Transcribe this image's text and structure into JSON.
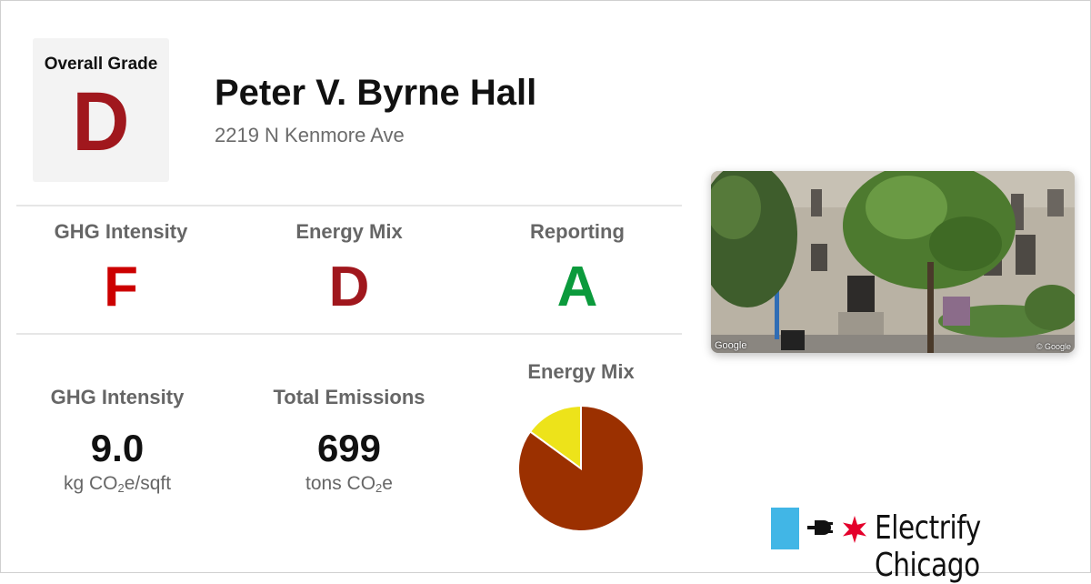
{
  "overall": {
    "label": "Overall Grade",
    "grade": "D"
  },
  "building": {
    "name": "Peter V. Byrne Hall",
    "address": "2219 N Kenmore Ave"
  },
  "grades": [
    {
      "label": "GHG Intensity",
      "grade": "F",
      "color": "#cc0000"
    },
    {
      "label": "Energy Mix",
      "grade": "D",
      "color": "#a0171d"
    },
    {
      "label": "Reporting",
      "grade": "A",
      "color": "#0b9a3c"
    }
  ],
  "metrics": {
    "ghg": {
      "label": "GHG Intensity",
      "value": "9.0",
      "unit_pre": "kg CO",
      "unit_sub": "2",
      "unit_post": "e/sqft"
    },
    "emissions": {
      "label": "Total Emissions",
      "value": "699",
      "unit_pre": "tons CO",
      "unit_sub": "2",
      "unit_post": "e"
    }
  },
  "energy_mix": {
    "label": "Energy Mix"
  },
  "chart_data": {
    "type": "pie",
    "title": "Energy Mix",
    "slices": [
      {
        "value": 85,
        "color": "#9b3000"
      },
      {
        "value": 15,
        "color": "#ede31a"
      }
    ]
  },
  "photo": {
    "credit": "Google",
    "credit_small": "© Google"
  },
  "brand": {
    "name": "Electrify Chicago",
    "accent": "#41b6e6",
    "star": "#e4002b"
  },
  "colors": {
    "overall_grade": "#a0171d"
  }
}
